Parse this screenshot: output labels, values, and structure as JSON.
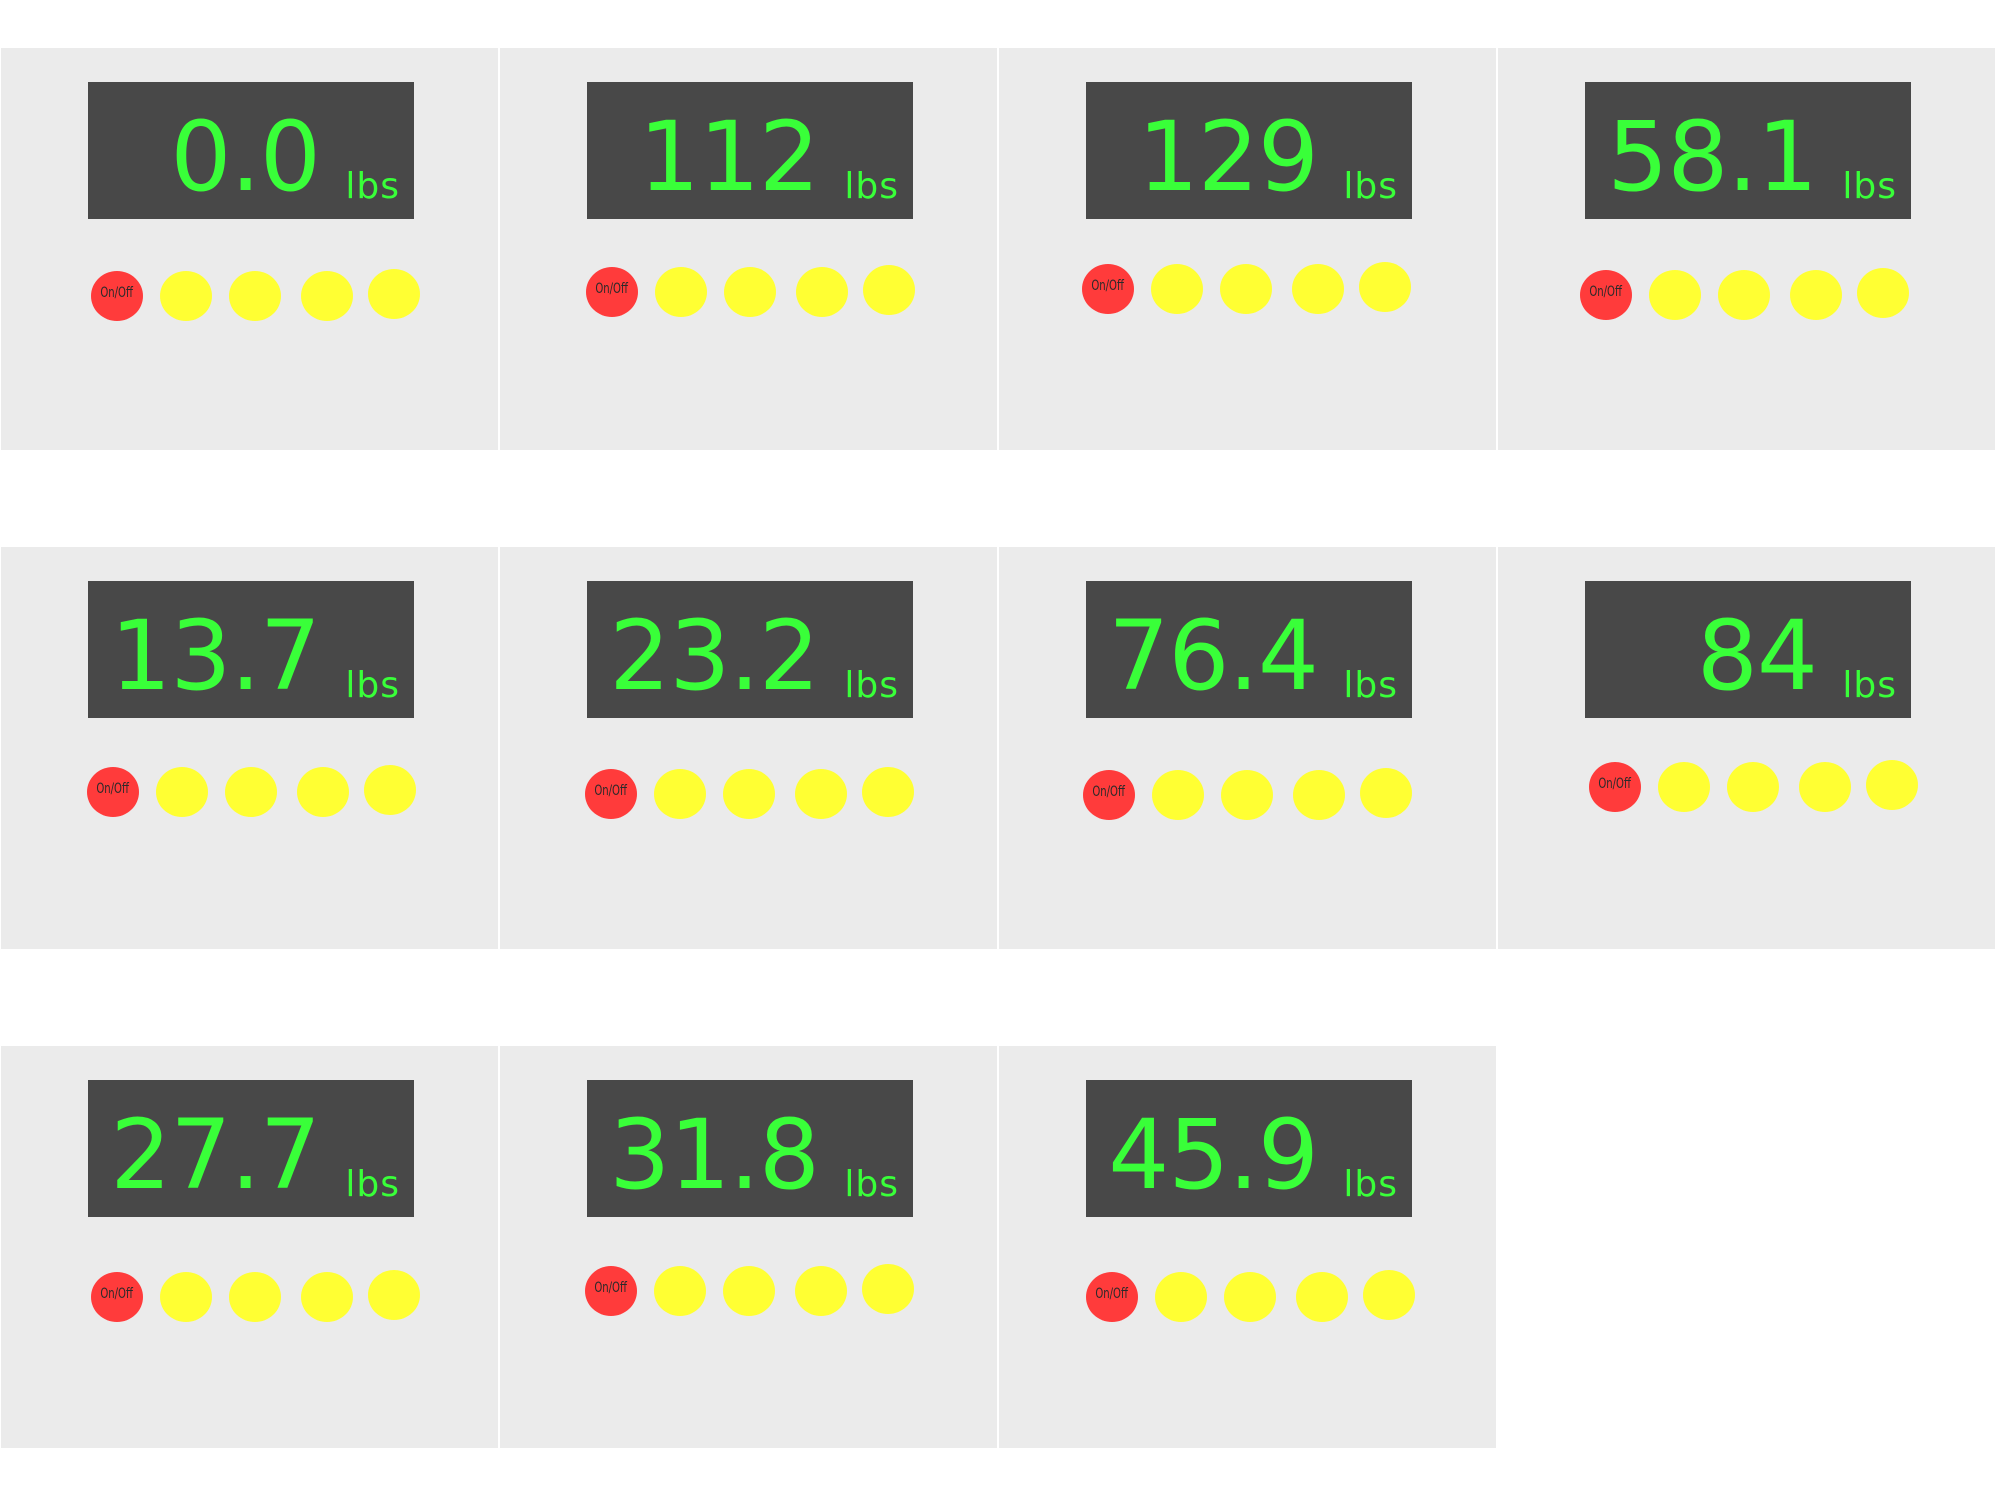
{
  "colors": {
    "panel_background": "#ebebeb",
    "display_background": "#484848",
    "display_text": "#39ff39",
    "power_button": "#ff3b3b",
    "function_button": "#ffff33"
  },
  "scales": [
    {
      "reading": "0.0",
      "unit": "lbs",
      "power_label": "On/Off"
    },
    {
      "reading": "112",
      "unit": "lbs",
      "power_label": "On/Off"
    },
    {
      "reading": "129",
      "unit": "lbs",
      "power_label": "On/Off"
    },
    {
      "reading": "58.1",
      "unit": "lbs",
      "power_label": "On/Off"
    },
    {
      "reading": "13.7",
      "unit": "lbs",
      "power_label": "On/Off"
    },
    {
      "reading": "23.2",
      "unit": "lbs",
      "power_label": "On/Off"
    },
    {
      "reading": "76.4",
      "unit": "lbs",
      "power_label": "On/Off"
    },
    {
      "reading": "84",
      "unit": "lbs",
      "power_label": "On/Off"
    },
    {
      "reading": "27.7",
      "unit": "lbs",
      "power_label": "On/Off"
    },
    {
      "reading": "31.8",
      "unit": "lbs",
      "power_label": "On/Off"
    },
    {
      "reading": "45.9",
      "unit": "lbs",
      "power_label": "On/Off"
    }
  ]
}
